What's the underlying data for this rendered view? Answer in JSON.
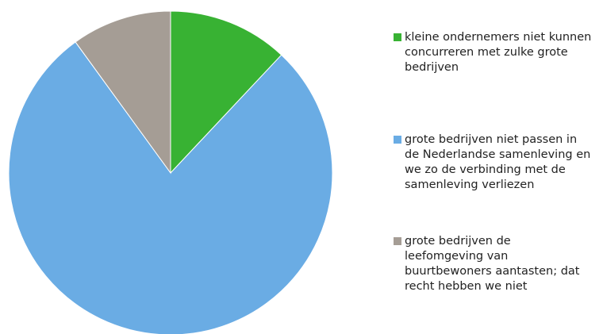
{
  "chart_data": {
    "type": "pie",
    "categories": [
      "kleine ondernemers niet kunnen concurreren met zulke grote bedrijven",
      "grote bedrijven niet passen in de Nederlandse samenleving en we zo de verbinding met de samenleving verliezen",
      "grote bedrijven de leefomgeving van buurtbewoners aantasten; dat recht hebben we niet"
    ],
    "values": [
      12,
      78,
      10
    ],
    "colors": [
      "#38b233",
      "#6aace4",
      "#a59d95"
    ]
  }
}
